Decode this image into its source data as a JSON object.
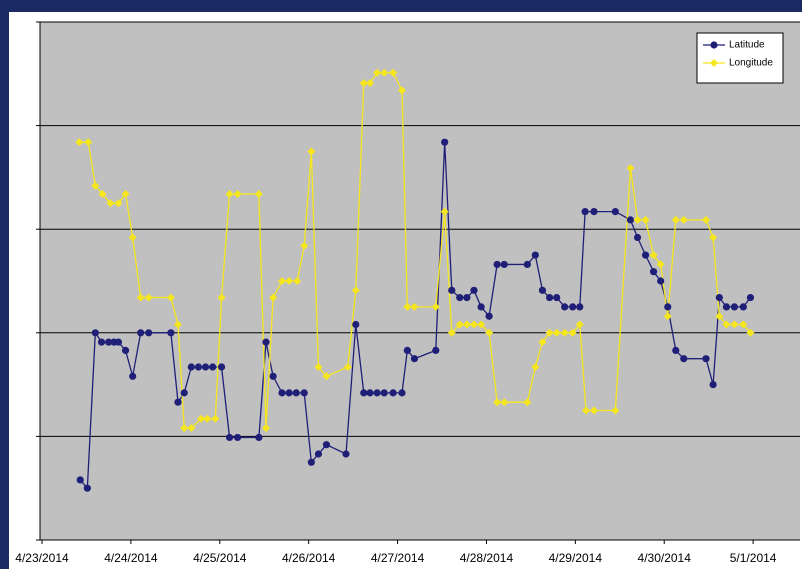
{
  "chart_data": {
    "type": "line",
    "xlim": [
      0,
      8.55
    ],
    "xticks": [
      {
        "value": 0,
        "label": "4/23/2014"
      },
      {
        "value": 1,
        "label": "4/24/2014"
      },
      {
        "value": 2,
        "label": "4/25/2014"
      },
      {
        "value": 3,
        "label": "4/26/2014"
      },
      {
        "value": 4,
        "label": "4/27/2014"
      },
      {
        "value": 5,
        "label": "4/28/2014"
      },
      {
        "value": 6,
        "label": "4/29/2014"
      },
      {
        "value": 7,
        "label": "4/30/2014"
      },
      {
        "value": 8,
        "label": "5/1/2014"
      }
    ],
    "ylim": [
      0,
      5
    ],
    "yticks": [
      0,
      1,
      2,
      3,
      4,
      5
    ],
    "grid": true,
    "legend": "upper right",
    "series": [
      {
        "name": "Latitude",
        "color": "#1f1f78",
        "marker": "circle",
        "x": [
          0.43,
          0.51,
          0.6,
          0.67,
          0.75,
          0.81,
          0.86,
          0.94,
          1.02,
          1.11,
          1.2,
          1.45,
          1.53,
          1.6,
          1.68,
          1.76,
          1.84,
          1.92,
          2.02,
          2.11,
          2.2,
          2.44,
          2.52,
          2.6,
          2.7,
          2.78,
          2.86,
          2.95,
          3.03,
          3.11,
          3.2,
          3.42,
          3.53,
          3.62,
          3.69,
          3.77,
          3.85,
          3.95,
          4.05,
          4.11,
          4.19,
          4.43,
          4.53,
          4.61,
          4.7,
          4.78,
          4.86,
          4.94,
          5.03,
          5.12,
          5.2,
          5.46,
          5.55,
          5.63,
          5.71,
          5.79,
          5.88,
          5.97,
          6.05,
          6.11,
          6.21,
          6.45,
          6.62,
          6.7,
          6.79,
          6.88,
          6.96,
          7.04,
          7.13,
          7.22,
          7.47,
          7.55,
          7.62,
          7.7,
          7.79,
          7.89,
          7.97
        ],
        "values": [
          0.58,
          0.5,
          2.0,
          1.91,
          1.91,
          1.91,
          1.91,
          1.83,
          1.58,
          2.0,
          2.0,
          2.0,
          1.33,
          1.42,
          1.67,
          1.67,
          1.67,
          1.67,
          1.67,
          0.99,
          0.99,
          0.99,
          1.91,
          1.58,
          1.42,
          1.42,
          1.42,
          1.42,
          0.75,
          0.83,
          0.92,
          0.83,
          2.08,
          1.42,
          1.42,
          1.42,
          1.42,
          1.42,
          1.42,
          1.83,
          1.75,
          1.83,
          3.84,
          2.41,
          2.34,
          2.34,
          2.41,
          2.25,
          2.16,
          2.66,
          2.66,
          2.66,
          2.75,
          2.41,
          2.34,
          2.34,
          2.25,
          2.25,
          2.25,
          3.17,
          3.17,
          3.17,
          3.09,
          2.92,
          2.75,
          2.59,
          2.5,
          2.25,
          1.83,
          1.75,
          1.75,
          1.5,
          2.34,
          2.25,
          2.25,
          2.25,
          2.34
        ]
      },
      {
        "name": "Longitude",
        "color": "#f5e61e",
        "marker": "diamond",
        "x": [
          0.42,
          0.52,
          0.6,
          0.68,
          0.77,
          0.86,
          0.94,
          1.02,
          1.11,
          1.2,
          1.45,
          1.53,
          1.6,
          1.68,
          1.79,
          1.86,
          1.95,
          2.02,
          2.11,
          2.2,
          2.44,
          2.52,
          2.6,
          2.7,
          2.78,
          2.87,
          2.95,
          3.03,
          3.11,
          3.2,
          3.44,
          3.53,
          3.62,
          3.69,
          3.77,
          3.85,
          3.95,
          4.05,
          4.11,
          4.19,
          4.43,
          4.53,
          4.61,
          4.7,
          4.78,
          4.86,
          4.94,
          5.03,
          5.12,
          5.2,
          5.46,
          5.55,
          5.63,
          5.71,
          5.79,
          5.88,
          5.97,
          6.05,
          6.12,
          6.21,
          6.45,
          6.62,
          6.7,
          6.79,
          6.88,
          6.96,
          7.04,
          7.13,
          7.22,
          7.47,
          7.55,
          7.62,
          7.7,
          7.79,
          7.89,
          7.97
        ],
        "values": [
          3.84,
          3.84,
          3.42,
          3.34,
          3.25,
          3.25,
          3.34,
          2.92,
          2.34,
          2.34,
          2.34,
          2.08,
          1.08,
          1.08,
          1.17,
          1.17,
          1.17,
          2.34,
          3.34,
          3.34,
          3.34,
          1.08,
          2.34,
          2.5,
          2.5,
          2.5,
          2.84,
          3.75,
          1.67,
          1.58,
          1.67,
          2.41,
          4.41,
          4.41,
          4.51,
          4.51,
          4.51,
          4.34,
          2.25,
          2.25,
          2.25,
          3.17,
          2.0,
          2.08,
          2.08,
          2.08,
          2.08,
          2.0,
          1.33,
          1.33,
          1.33,
          1.67,
          1.91,
          2.0,
          2.0,
          2.0,
          2.0,
          2.08,
          1.25,
          1.25,
          1.25,
          3.59,
          3.09,
          3.09,
          2.75,
          2.66,
          2.16,
          3.09,
          3.09,
          3.09,
          2.92,
          2.16,
          2.08,
          2.08,
          2.08,
          2.0
        ]
      }
    ]
  }
}
